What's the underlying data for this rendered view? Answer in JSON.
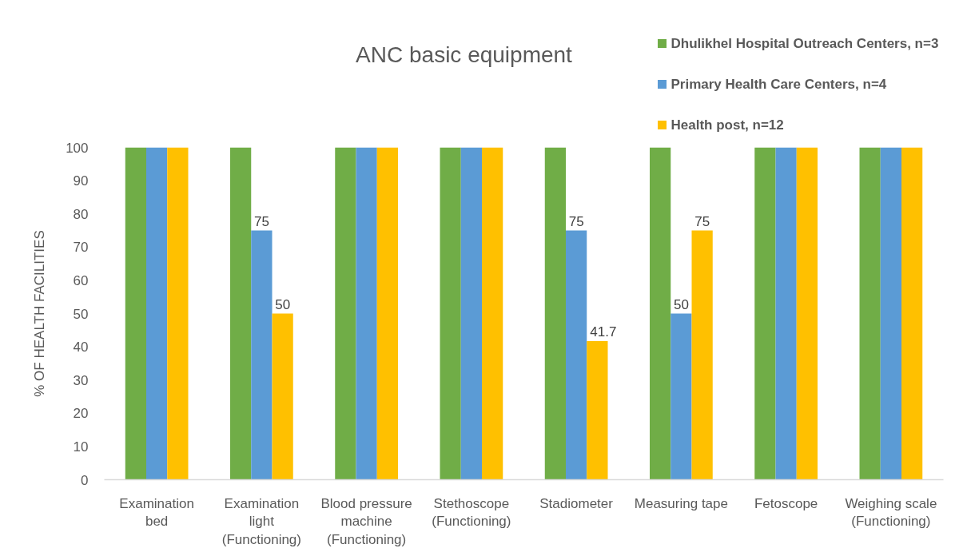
{
  "chart_data": {
    "type": "bar",
    "title": "ANC basic equipment",
    "ylabel": "% OF HEALTH FACILITIES",
    "categories": [
      "Examination bed",
      "Examination light (Functioning)",
      "Blood pressure machine (Functioning)",
      "Stethoscope (Functioning)",
      "Stadiometer",
      "Measuring tape",
      "Fetoscope",
      "Weighing scale (Functioning)"
    ],
    "series": [
      {
        "name": "Dhulikhel Hospital Outreach Centers, n=3",
        "color": "#70ad47",
        "values": [
          100,
          100,
          100,
          100,
          100,
          100,
          100,
          100
        ]
      },
      {
        "name": "Primary Health Care Centers, n=4",
        "color": "#5b9bd5",
        "values": [
          100,
          75,
          100,
          100,
          75,
          50,
          100,
          100
        ],
        "value_labels": [
          null,
          "75",
          null,
          null,
          "75",
          "50",
          null,
          null
        ]
      },
      {
        "name": "Health post, n=12",
        "color": "#ffc000",
        "values": [
          100,
          50,
          100,
          100,
          41.7,
          75,
          100,
          100
        ],
        "value_labels": [
          null,
          "50",
          null,
          null,
          "41.7",
          "75",
          null,
          null
        ]
      }
    ],
    "ylim": [
      0,
      100
    ],
    "yticks": [
      0,
      10,
      20,
      30,
      40,
      50,
      60,
      70,
      80,
      90,
      100
    ],
    "grid": false,
    "legend": "top right"
  }
}
